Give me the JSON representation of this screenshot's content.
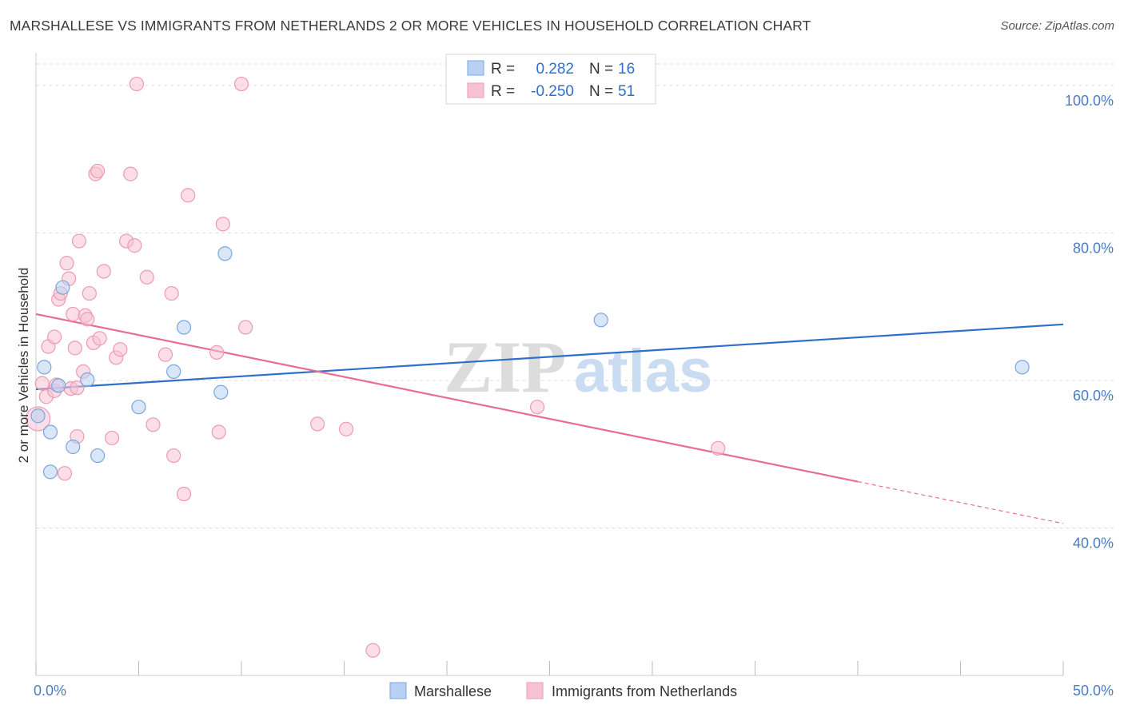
{
  "title": "MARSHALLESE VS IMMIGRANTS FROM NETHERLANDS 2 OR MORE VEHICLES IN HOUSEHOLD CORRELATION CHART",
  "source": "Source: ZipAtlas.com",
  "watermark": {
    "zip": "ZIP",
    "atlas": "atlas"
  },
  "colors": {
    "blue_fill": "#b8d1f3",
    "blue_stroke": "#7aa6e0",
    "blue_line": "#2f6fcc",
    "pink_fill": "#f7c3d3",
    "pink_stroke": "#ee9ab4",
    "pink_line": "#e56d98",
    "value_text": "#2f6fcc",
    "grid": "#dddddd"
  },
  "chart_data": {
    "type": "scatter",
    "xlabel": "",
    "ylabel": "2 or more Vehicles in Household",
    "xlim": [
      0,
      50
    ],
    "ylim": [
      20,
      104
    ],
    "x_tick_labels": [
      {
        "value": 0,
        "label": "0.0%"
      },
      {
        "value": 50,
        "label": "50.0%"
      }
    ],
    "x_minor_ticks": [
      0,
      5,
      10,
      15,
      20,
      25,
      30,
      35,
      40,
      45,
      50
    ],
    "y_ticks": [
      {
        "value": 100,
        "label": "100.0%"
      },
      {
        "value": 80,
        "label": "80.0%"
      },
      {
        "value": 60,
        "label": "60.0%"
      },
      {
        "value": 40,
        "label": "40.0%"
      }
    ],
    "legend": {
      "stats": [
        {
          "r_label": "R =",
          "r_value": "0.282",
          "n_label": "N =",
          "n_value": "16"
        },
        {
          "r_label": "R =",
          "r_value": "-0.250",
          "n_label": "N =",
          "n_value": "51"
        }
      ],
      "bottom": [
        {
          "name": "Marshallese"
        },
        {
          "name": "Immigrants from Netherlands"
        }
      ]
    },
    "series": [
      {
        "name": "Marshallese",
        "trend": {
          "x0": 0,
          "y0": 58.8,
          "x1": 50,
          "y1": 67.6,
          "solid_until": 50
        },
        "points": [
          {
            "x": 0.1,
            "y": 55.2
          },
          {
            "x": 0.4,
            "y": 61.8
          },
          {
            "x": 0.7,
            "y": 53.0
          },
          {
            "x": 0.7,
            "y": 47.6
          },
          {
            "x": 1.1,
            "y": 59.3
          },
          {
            "x": 1.3,
            "y": 72.6
          },
          {
            "x": 1.8,
            "y": 51.0
          },
          {
            "x": 2.5,
            "y": 60.1
          },
          {
            "x": 3.0,
            "y": 49.8
          },
          {
            "x": 5.0,
            "y": 56.4
          },
          {
            "x": 6.7,
            "y": 61.2
          },
          {
            "x": 7.2,
            "y": 67.2
          },
          {
            "x": 9.0,
            "y": 58.4
          },
          {
            "x": 9.2,
            "y": 77.2
          },
          {
            "x": 27.5,
            "y": 68.2
          },
          {
            "x": 48.0,
            "y": 61.8
          }
        ]
      },
      {
        "name": "Immigrants from Netherlands",
        "trend": {
          "x0": 0,
          "y0": 69.0,
          "x1": 50,
          "y1": 40.6,
          "solid_until": 40
        },
        "points": [
          {
            "x": 0.1,
            "y": 54.8,
            "big": true
          },
          {
            "x": 0.3,
            "y": 59.6
          },
          {
            "x": 0.5,
            "y": 57.8
          },
          {
            "x": 0.6,
            "y": 64.6
          },
          {
            "x": 0.9,
            "y": 65.9
          },
          {
            "x": 0.9,
            "y": 58.6
          },
          {
            "x": 1.0,
            "y": 59.4
          },
          {
            "x": 1.1,
            "y": 71.0
          },
          {
            "x": 1.2,
            "y": 71.8
          },
          {
            "x": 1.4,
            "y": 47.4
          },
          {
            "x": 1.5,
            "y": 75.9
          },
          {
            "x": 1.6,
            "y": 73.8
          },
          {
            "x": 1.7,
            "y": 58.9
          },
          {
            "x": 1.8,
            "y": 69.0
          },
          {
            "x": 1.9,
            "y": 64.4
          },
          {
            "x": 2.0,
            "y": 52.4
          },
          {
            "x": 2.1,
            "y": 78.9
          },
          {
            "x": 2.3,
            "y": 61.2
          },
          {
            "x": 2.4,
            "y": 68.8
          },
          {
            "x": 2.5,
            "y": 68.3
          },
          {
            "x": 2.6,
            "y": 71.8
          },
          {
            "x": 2.8,
            "y": 65.1
          },
          {
            "x": 2.9,
            "y": 88.0
          },
          {
            "x": 3.0,
            "y": 88.4
          },
          {
            "x": 3.1,
            "y": 65.7
          },
          {
            "x": 3.3,
            "y": 74.8
          },
          {
            "x": 3.7,
            "y": 52.2
          },
          {
            "x": 3.9,
            "y": 63.1
          },
          {
            "x": 4.1,
            "y": 64.2
          },
          {
            "x": 4.4,
            "y": 78.9
          },
          {
            "x": 4.6,
            "y": 88.0
          },
          {
            "x": 4.8,
            "y": 78.3
          },
          {
            "x": 4.9,
            "y": 100.2
          },
          {
            "x": 5.4,
            "y": 74.0
          },
          {
            "x": 5.7,
            "y": 54.0
          },
          {
            "x": 6.3,
            "y": 63.5
          },
          {
            "x": 6.6,
            "y": 71.8
          },
          {
            "x": 6.7,
            "y": 49.8
          },
          {
            "x": 7.2,
            "y": 44.6
          },
          {
            "x": 7.4,
            "y": 85.1
          },
          {
            "x": 8.8,
            "y": 63.8
          },
          {
            "x": 8.9,
            "y": 53.0
          },
          {
            "x": 9.1,
            "y": 81.2
          },
          {
            "x": 10.2,
            "y": 67.2
          },
          {
            "x": 10.0,
            "y": 100.2
          },
          {
            "x": 13.7,
            "y": 54.1
          },
          {
            "x": 15.1,
            "y": 53.4
          },
          {
            "x": 16.4,
            "y": 23.4
          },
          {
            "x": 24.4,
            "y": 56.4
          },
          {
            "x": 33.2,
            "y": 50.8
          },
          {
            "x": 2.0,
            "y": 59.0
          }
        ]
      }
    ]
  }
}
